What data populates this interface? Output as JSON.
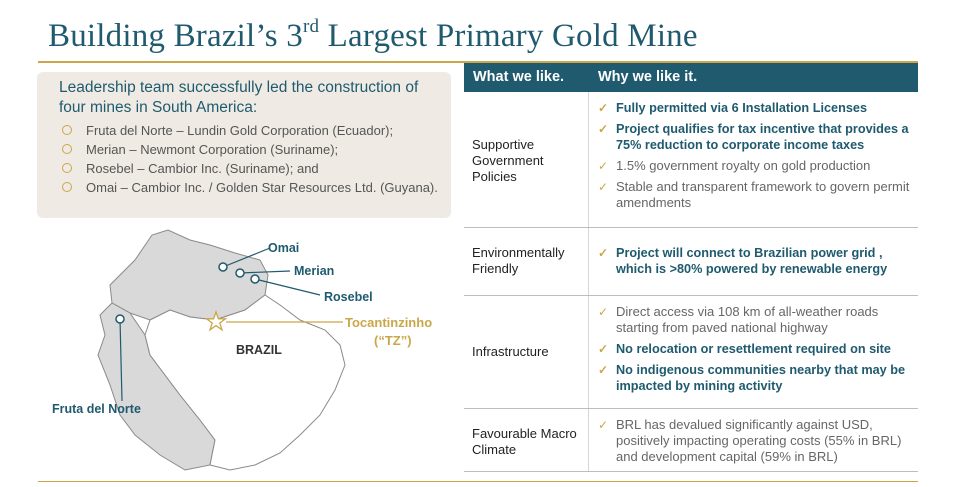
{
  "title": {
    "prefix": "Building Brazil’s 3",
    "sup": "rd",
    "suffix": " Largest Primary Gold Mine"
  },
  "leadership": {
    "heading": "Leadership team successfully led the construction of four mines in South America:",
    "items": [
      "Fruta del Norte – Lundin Gold Corporation (Ecuador);",
      "Merian – Newmont Corporation (Suriname);",
      "Rosebel – Cambior Inc. (Suriname); and",
      "Omai – Cambior Inc. / Golden Star Resources Ltd. (Guyana)."
    ]
  },
  "map": {
    "labels": {
      "omai": "Omai",
      "merian": "Merian",
      "rosebel": "Rosebel",
      "tz_line1": "Tocantinzinho",
      "tz_line2": "(“TZ”)",
      "brazil": "BRAZIL",
      "fruta": "Fruta del Norte"
    },
    "colors": {
      "land": "#d9d9d9",
      "brazil": "#ffffff",
      "gold": "#c9a74a",
      "teal": "#1f5a6e"
    }
  },
  "table": {
    "headers": [
      "What we like.",
      "Why we like it."
    ],
    "rows": [
      {
        "label": "Supportive Government Policies",
        "items": [
          {
            "text": "Fully permitted via 6 Installation Licenses",
            "bold": true
          },
          {
            "text": "Project qualifies for tax incentive that provides a 75% reduction to corporate income taxes",
            "bold": true
          },
          {
            "text": "1.5% government royalty on gold production",
            "bold": false
          },
          {
            "text": "Stable and transparent framework to govern permit amendments",
            "bold": false
          }
        ]
      },
      {
        "label": "Environmentally Friendly",
        "items": [
          {
            "text": "Project will connect to Brazilian power grid , which is >80% powered by renewable energy",
            "bold": true
          }
        ]
      },
      {
        "label": "Infrastructure",
        "items": [
          {
            "text": "Direct access via 108 km of all-weather roads starting from paved national highway",
            "bold": false
          },
          {
            "text": "No relocation or resettlement required on site",
            "bold": true
          },
          {
            "text": "No indigenous communities nearby that may be impacted by mining activity",
            "bold": true
          }
        ]
      },
      {
        "label": "Favourable Macro Climate",
        "items": [
          {
            "text": "BRL has devalued significantly against USD, positively impacting operating costs (55% in BRL) and development capital (59% in BRL)",
            "bold": false
          }
        ]
      }
    ]
  }
}
